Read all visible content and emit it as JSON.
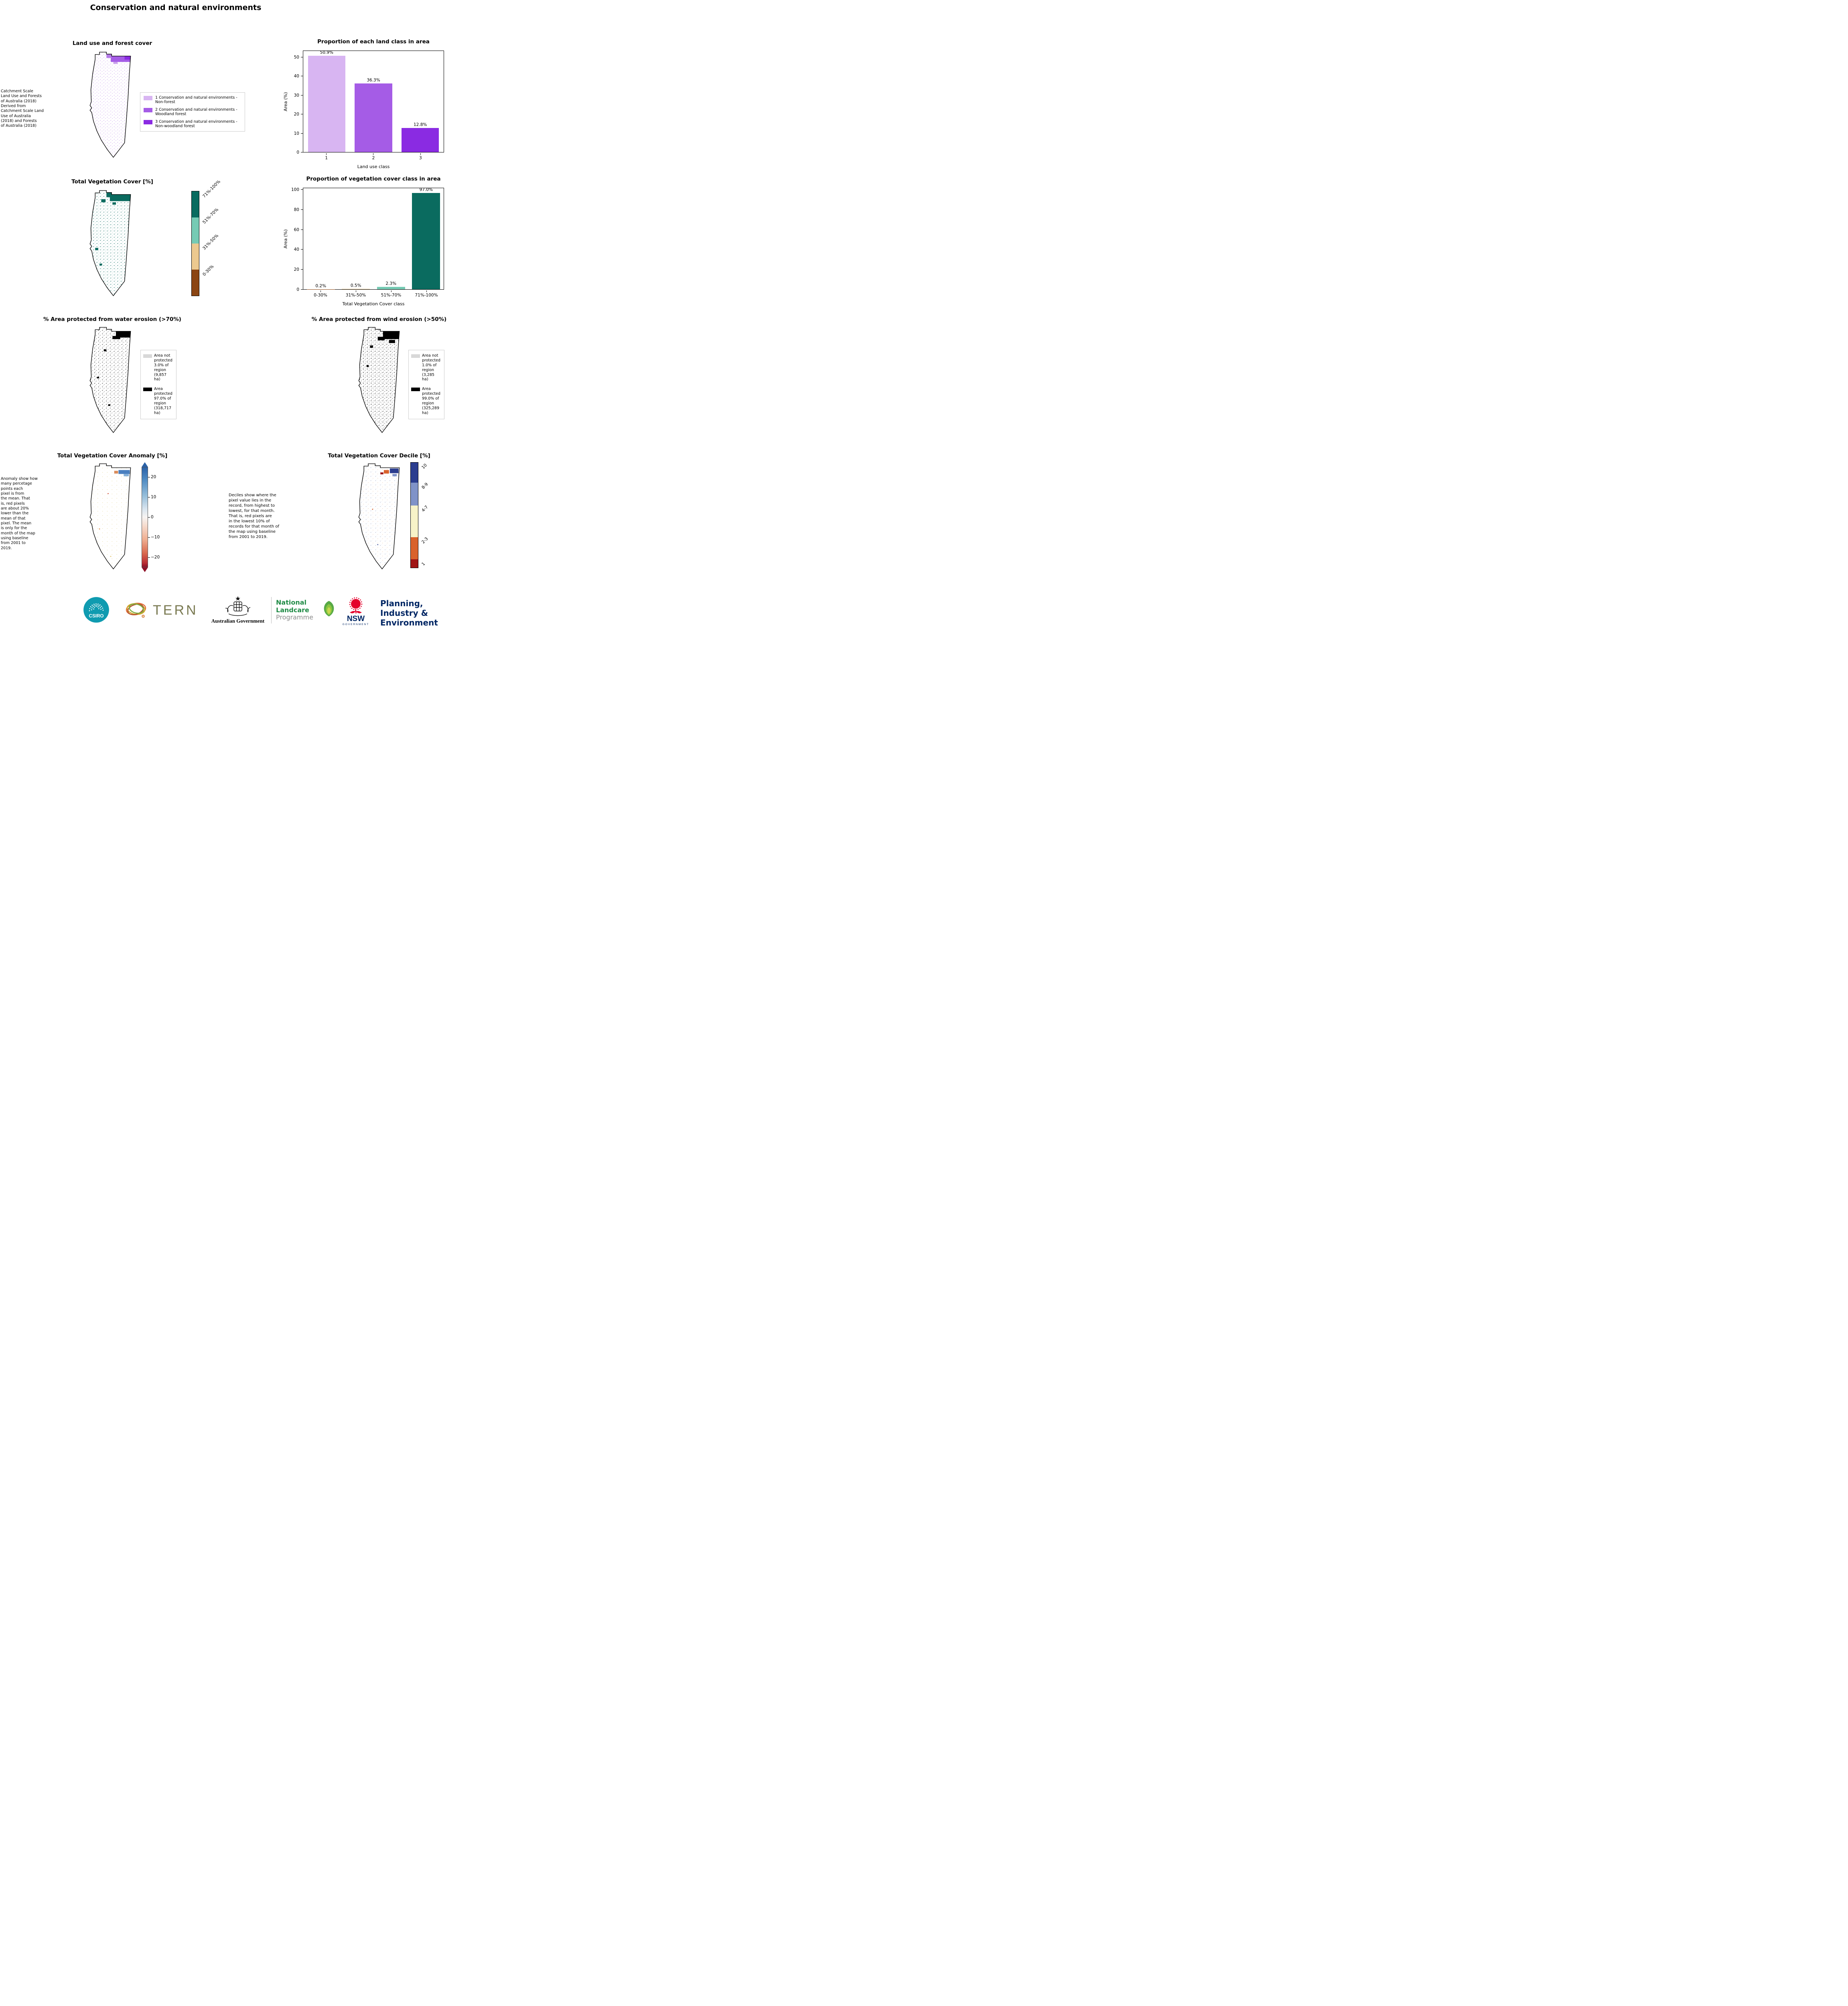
{
  "page": {
    "title": "Conservation and natural environments"
  },
  "panels": {
    "land_use": {
      "title": "Land use and forest cover",
      "source_note": " Catchment Scale\nLand Use and Forests\nof Australia (2018)\nDerived from\nCatchment Scale Land\nUse of Australia\n(2018) and Forests\nof Australia (2018)",
      "legend": [
        {
          "label": "1 Conservation and natural environments - Non-forest",
          "color": "#d8b5f2"
        },
        {
          "label": "2 Conservation and natural environments - Woodland forest",
          "color": "#a55ce6"
        },
        {
          "label": "3 Conservation and natural environments - Non-woodland forest",
          "color": "#8a2be2"
        }
      ]
    },
    "veg_cover": {
      "title": "Total Vegetation Cover [%]",
      "colorbar_labels": [
        "71%-100%",
        "51%-70%",
        "31%-50%",
        "0-30%"
      ],
      "colorbar_colors": [
        "#0a6b5f",
        "#76cbb4",
        "#ecc98f",
        "#8b4513"
      ]
    },
    "water_erosion": {
      "title": "% Area protected from water erosion (>70%)",
      "legend": [
        {
          "label": "Area not protected 3.0% of region (9,857 ha)",
          "color": "#d8d8d8"
        },
        {
          "label": "Area protected 97.0% of region (318,717 ha)",
          "color": "#000000"
        }
      ]
    },
    "wind_erosion": {
      "title": "% Area protected from wind erosion (>50%)",
      "legend": [
        {
          "label": "Area not protected 1.0% of region (3,285 ha)",
          "color": "#d8d8d8"
        },
        {
          "label": "Area protected 99.0% of region (325,289 ha)",
          "color": "#000000"
        }
      ]
    },
    "anomaly": {
      "title": "Total Vegetation Cover Anomaly [%]",
      "note": "Anomaly show how\nmany percetage\npoints each\npixel is from\nthe mean. That\nis, red pixels\nare about 20%\nlower than the\nmean of that\npixel. The mean\nis only for the\nmonth of the map\nusing baseline\nfrom 2001 to\n2019.",
      "colorbar_ticks": [
        "20",
        "10",
        "0",
        "−10",
        "−20"
      ]
    },
    "decile": {
      "title": "Total Vegetation Cover Decile [%]",
      "note": "Deciles show where the\npixel value lies in the\nrecord, from highest to\nlowest, for that month.\nThat is, red pixels are\nin the lowest 10% of\nrecords for that month of\nthe map using baseline\nfrom 2001 to 2019.",
      "colorbar_labels": [
        "10",
        "8-9",
        "4-7",
        "2-3",
        "1"
      ],
      "colorbar_colors": [
        "#2b3d8f",
        "#8093c8",
        "#f7f3c8",
        "#d9622b",
        "#a01616"
      ]
    }
  },
  "chart_data": [
    {
      "id": "land_class",
      "type": "bar",
      "title": "Proportion of each land class in area",
      "categories": [
        "1",
        "2",
        "3"
      ],
      "values": [
        50.9,
        36.3,
        12.8
      ],
      "value_labels": [
        "50.9%",
        "36.3%",
        "12.8%"
      ],
      "colors": [
        "#d8b5f2",
        "#a55ce6",
        "#8a2be2"
      ],
      "xlabel": "Land use class",
      "ylabel": "Area (%)",
      "ylim": [
        0,
        53.5
      ],
      "yticks": [
        0,
        10,
        20,
        30,
        40,
        50
      ],
      "grid": false,
      "legend_position": "none"
    },
    {
      "id": "veg_cover",
      "type": "bar",
      "title": "Proportion of vegetation cover class in area",
      "categories": [
        "0-30%",
        "31%-50%",
        "51%-70%",
        "71%-100%"
      ],
      "values": [
        0.2,
        0.5,
        2.3,
        97.0
      ],
      "value_labels": [
        "0.2%",
        "0.5%",
        "2.3%",
        "97.0%"
      ],
      "colors": [
        "#8b4513",
        "#ecc98f",
        "#76cbb4",
        "#0a6b5f"
      ],
      "xlabel": "Total Vegetation Cover class",
      "ylabel": "Area (%)",
      "ylim": [
        0,
        102
      ],
      "yticks": [
        0,
        20,
        40,
        60,
        80,
        100
      ],
      "grid": false,
      "legend_position": "none"
    }
  ],
  "footer": {
    "csiro_label": "CSIRO",
    "tern_label": "TERN",
    "ausgov_label": "Australian Government",
    "landcare_line1": "National",
    "landcare_line2": "Landcare",
    "landcare_line3": "Programme",
    "nsw_label": "NSW",
    "nsw_sub": "GOVERNMENT",
    "planning_line1": "Planning,",
    "planning_line2": "Industry &",
    "planning_line3": "Environment"
  }
}
